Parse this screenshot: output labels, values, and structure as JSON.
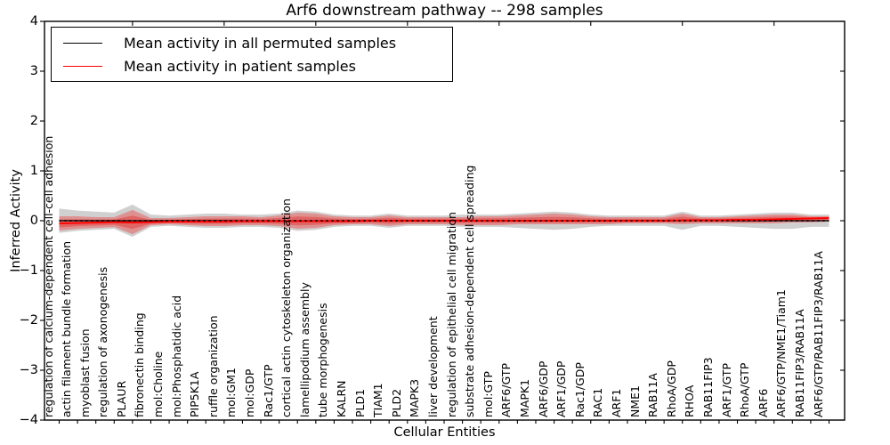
{
  "chart_data": {
    "type": "area",
    "title": "Arf6 downstream pathway -- 298 samples",
    "xlabel": "Cellular Entities",
    "ylabel": "Inferred Activity",
    "ylim": [
      -4,
      4
    ],
    "yticks": [
      4,
      3,
      2,
      1,
      0,
      -1,
      -2,
      -3,
      -4
    ],
    "grid": false,
    "legend_position": "upper left",
    "legend": [
      {
        "label": "Mean activity in all permuted samples",
        "color": "#000000"
      },
      {
        "label": "Mean activity in patient samples",
        "color": "#ff0000"
      }
    ],
    "colors": {
      "patient_line": "#ff0000",
      "patient_band": "rgba(255,0,0,0.30)",
      "patient_band_inner": "rgba(230,30,30,0.38)",
      "permuted_band": "rgba(120,120,120,0.35)",
      "permuted_line": "#000000",
      "zero_line": "#000000"
    },
    "permuted_mean": 0.0,
    "entities": [
      {
        "name": "regulation of calcium-dependent cell-cell adhesion",
        "mean": -0.054,
        "lo": -0.198,
        "hi": 0.09
      },
      {
        "name": "actin filament bundle formation",
        "mean": -0.045,
        "lo": -0.162,
        "hi": 0.09
      },
      {
        "name": "myoblast fusion",
        "mean": -0.036,
        "lo": -0.144,
        "hi": 0.072
      },
      {
        "name": "regulation of axonogenesis",
        "mean": -0.027,
        "lo": -0.126,
        "hi": 0.072
      },
      {
        "name": "PLAUR",
        "mean": -0.036,
        "lo": -0.27,
        "hi": 0.216
      },
      {
        "name": "fibronectin binding",
        "mean": -0.027,
        "lo": -0.09,
        "hi": 0.054
      },
      {
        "name": "mol:Choline",
        "mean": -0.018,
        "lo": -0.072,
        "hi": 0.054
      },
      {
        "name": "mol:Phosphatidic acid",
        "mean": -0.018,
        "lo": -0.09,
        "hi": 0.072
      },
      {
        "name": "PIP5K1A",
        "mean": -0.018,
        "lo": -0.108,
        "hi": 0.09
      },
      {
        "name": "ruffle organization",
        "mean": -0.018,
        "lo": -0.108,
        "hi": 0.09
      },
      {
        "name": "mol:GM1",
        "mean": -0.009,
        "lo": -0.09,
        "hi": 0.09
      },
      {
        "name": "mol:GDP",
        "mean": -0.009,
        "lo": -0.09,
        "hi": 0.072
      },
      {
        "name": "Rac1/GTP",
        "mean": -0.009,
        "lo": -0.108,
        "hi": 0.108
      },
      {
        "name": "cortical actin cytoskeleton organization",
        "mean": -0.009,
        "lo": -0.162,
        "hi": 0.162
      },
      {
        "name": "lamellipodium assembly",
        "mean": -0.009,
        "lo": -0.144,
        "hi": 0.144
      },
      {
        "name": "tube morphogenesis",
        "mean": -0.009,
        "lo": -0.09,
        "hi": 0.09
      },
      {
        "name": "KALRN",
        "mean": -0.009,
        "lo": -0.072,
        "hi": 0.072
      },
      {
        "name": "PLD1",
        "mean": 0.0,
        "lo": -0.072,
        "hi": 0.072
      },
      {
        "name": "TIAM1",
        "mean": 0.0,
        "lo": -0.108,
        "hi": 0.108
      },
      {
        "name": "PLD2",
        "mean": 0.0,
        "lo": -0.072,
        "hi": 0.072
      },
      {
        "name": "MAPK3",
        "mean": 0.0,
        "lo": -0.072,
        "hi": 0.072
      },
      {
        "name": "liver development",
        "mean": 0.0,
        "lo": -0.072,
        "hi": 0.072
      },
      {
        "name": "regulation of epithelial cell migration",
        "mean": 0.0,
        "lo": -0.09,
        "hi": 0.072
      },
      {
        "name": "substrate adhesion-dependent cell spreading",
        "mean": 0.0,
        "lo": -0.09,
        "hi": 0.09
      },
      {
        "name": "mol:GTP",
        "mean": 0.0,
        "lo": -0.09,
        "hi": 0.09
      },
      {
        "name": "ARF6/GTP",
        "mean": 0.0,
        "lo": -0.072,
        "hi": 0.108
      },
      {
        "name": "MAPK1",
        "mean": 0.0,
        "lo": -0.072,
        "hi": 0.126
      },
      {
        "name": "ARF6/GDP",
        "mean": 0.0,
        "lo": -0.072,
        "hi": 0.144
      },
      {
        "name": "ARF1/GDP",
        "mean": 0.0,
        "lo": -0.072,
        "hi": 0.126
      },
      {
        "name": "Rac1/GDP",
        "mean": 0.0,
        "lo": -0.072,
        "hi": 0.09
      },
      {
        "name": "RAC1",
        "mean": 0.0,
        "lo": -0.072,
        "hi": 0.072
      },
      {
        "name": "ARF1",
        "mean": 0.0,
        "lo": -0.054,
        "hi": 0.072
      },
      {
        "name": "NME1",
        "mean": 0.0,
        "lo": -0.054,
        "hi": 0.072
      },
      {
        "name": "RAB11A",
        "mean": 0.0,
        "lo": -0.054,
        "hi": 0.072
      },
      {
        "name": "RhoA/GDP",
        "mean": 0.009,
        "lo": -0.072,
        "hi": 0.144
      },
      {
        "name": "RHOA",
        "mean": 0.009,
        "lo": -0.054,
        "hi": 0.072
      },
      {
        "name": "RAB11FIP3",
        "mean": 0.009,
        "lo": -0.054,
        "hi": 0.072
      },
      {
        "name": "ARF1/GTP",
        "mean": 0.018,
        "lo": -0.054,
        "hi": 0.09
      },
      {
        "name": "RhoA/GTP",
        "mean": 0.018,
        "lo": -0.054,
        "hi": 0.108
      },
      {
        "name": "ARF6",
        "mean": 0.027,
        "lo": -0.054,
        "hi": 0.126
      },
      {
        "name": "ARF6/GTP/NME1/Tiam1",
        "mean": 0.036,
        "lo": -0.036,
        "hi": 0.126
      },
      {
        "name": "RAB11FIP3/RAB11A",
        "mean": 0.045,
        "lo": -0.036,
        "hi": 0.09
      },
      {
        "name": "ARF6/GTP/RAB11FIP3/RAB11A",
        "mean": 0.054,
        "lo": -0.018,
        "hi": 0.09
      }
    ]
  }
}
